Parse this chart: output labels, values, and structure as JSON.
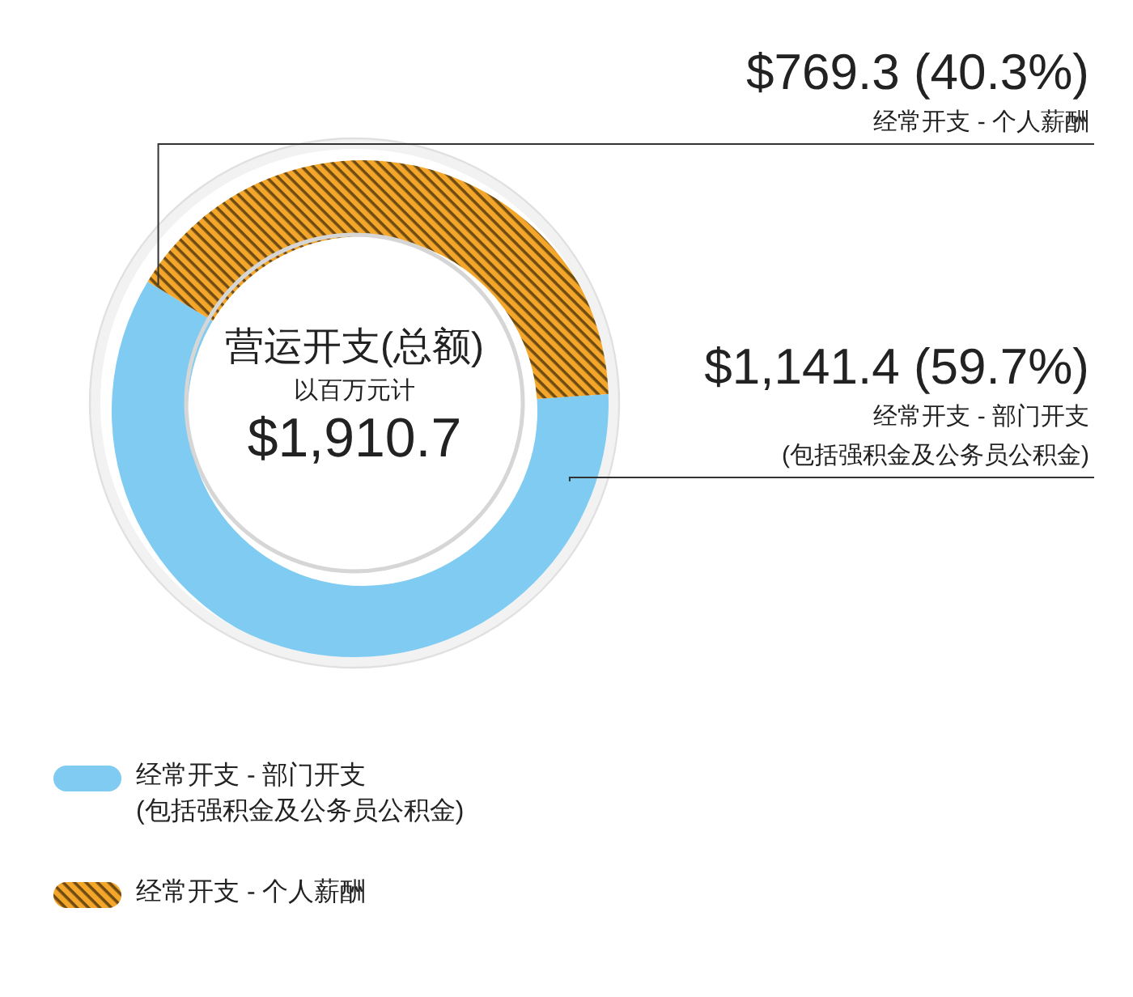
{
  "chart_data": {
    "type": "donut",
    "title": "营运开支(总额)",
    "subtitle": "以百万元计",
    "annotations": [
      "$1,910.7"
    ],
    "categories": [
      "经常开支 - 部门开支\n(包括强积金及公务员公积金)",
      "经常开支 - 个人薪酬"
    ],
    "values": [
      1141.4,
      769.3
    ],
    "colors": [
      "#7fcbf1",
      "#f4a62a"
    ],
    "value_labels": [
      "$1,141.4 (59.7%)",
      "$769.3 (40.3%)"
    ],
    "legend": "bottom left"
  }
}
